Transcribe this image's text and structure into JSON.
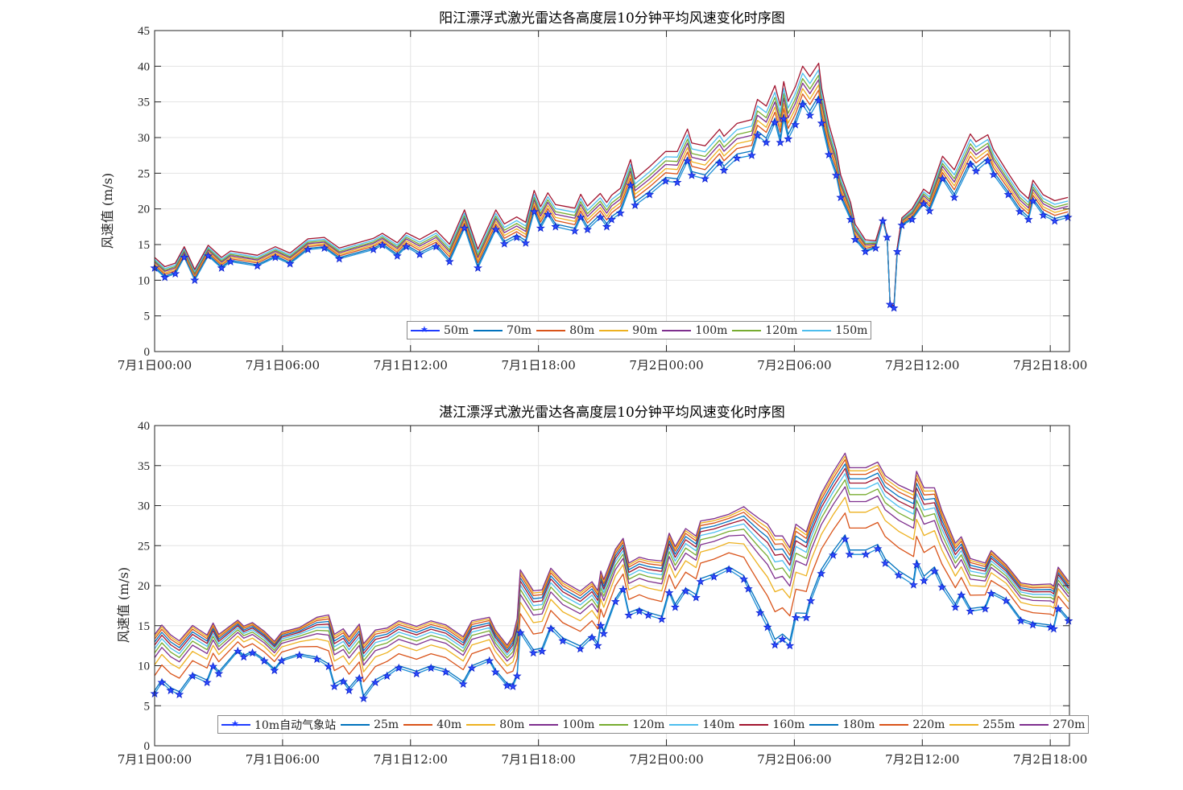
{
  "chart_data": [
    {
      "type": "line",
      "title": "阳江漂浮式激光雷达各高度层10分钟平均风速变化时序图",
      "xlabel": "",
      "ylabel": "风速值 (m/s)",
      "xlim": [
        0,
        42.9
      ],
      "ylim": [
        0,
        45
      ],
      "yticks": [
        0,
        5,
        10,
        15,
        20,
        25,
        30,
        35,
        40,
        45
      ],
      "xticks": [
        0,
        6,
        12,
        18,
        24,
        30,
        36,
        42
      ],
      "xticklabels": [
        "7月1日00:00",
        "7月1日06:00",
        "7月1日12:00",
        "7月1日18:00",
        "7月2日00:00",
        "7月2日06:00",
        "7月2日12:00",
        "7月2日18:00"
      ],
      "grid": true,
      "legend_position": "bottom-center",
      "x": [
        0,
        0.48,
        0.97,
        1.39,
        1.88,
        2.51,
        3.14,
        3.56,
        4.82,
        5.66,
        6.35,
        7.19,
        7.96,
        8.66,
        10.26,
        10.68,
        11.38,
        11.8,
        12.43,
        13.2,
        13.83,
        14.53,
        15.16,
        16.0,
        16.4,
        16.98,
        17.4,
        17.8,
        18.1,
        18.44,
        18.8,
        19.7,
        19.98,
        20.3,
        20.9,
        21.2,
        21.43,
        21.84,
        22.32,
        22.53,
        23.21,
        23.96,
        24.51,
        24.99,
        25.19,
        25.81,
        26.49,
        26.7,
        27.31,
        28.0,
        28.27,
        28.68,
        29.09,
        29.34,
        29.5,
        29.71,
        30.05,
        30.39,
        30.73,
        31.14,
        31.28,
        31.62,
        31.96,
        32.17,
        32.64,
        32.85,
        33.33,
        33.81,
        34.15,
        34.35,
        34.49,
        34.67,
        34.83,
        35.04,
        35.52,
        36.06,
        36.34,
        36.95,
        37.5,
        38.25,
        38.52,
        39.07,
        39.34,
        40.03,
        40.57,
        40.98,
        41.19,
        41.67,
        42.21,
        42.83
      ],
      "offset_above_base": {
        "x": [
          0,
          10,
          12,
          14,
          18,
          22,
          25,
          28,
          31,
          32.5,
          33.5,
          34.5,
          35,
          36,
          38,
          40,
          42.9
        ],
        "y": [
          1.5,
          1.5,
          2,
          2.5,
          3,
          3.5,
          4.5,
          5,
          5.5,
          2.5,
          1.5,
          0,
          1,
          2,
          4.5,
          3,
          2.8
        ]
      },
      "series": [
        {
          "name": "50m",
          "color": "#1f3cff",
          "marker": "star",
          "level": 0,
          "values": [
            11.7,
            10.4,
            10.9,
            13.2,
            10.0,
            13.4,
            11.7,
            12.6,
            12.0,
            13.2,
            12.3,
            14.3,
            14.5,
            13.0,
            14.3,
            14.9,
            13.4,
            14.7,
            13.6,
            14.7,
            12.6,
            17.3,
            11.7,
            17.1,
            15.1,
            16.0,
            15.2,
            19.6,
            17.3,
            19.2,
            17.5,
            16.9,
            18.8,
            17.1,
            18.8,
            17.5,
            18.5,
            19.4,
            23.3,
            20.5,
            22.0,
            23.9,
            23.7,
            26.7,
            24.7,
            24.2,
            26.4,
            25.4,
            27.1,
            27.5,
            30.3,
            29.3,
            32.1,
            29.3,
            32.6,
            29.8,
            31.8,
            34.6,
            33.1,
            35.2,
            32.0,
            27.6,
            24.7,
            21.6,
            18.5,
            15.7,
            14.0,
            14.5,
            18.3,
            16.0,
            6.6,
            6.1,
            14.0,
            17.7,
            18.5,
            20.7,
            19.7,
            24.2,
            21.6,
            26.2,
            25.3,
            26.7,
            24.8,
            22.0,
            19.6,
            18.5,
            21.1,
            19.1,
            18.3,
            18.8
          ]
        },
        {
          "name": "70m",
          "color": "#0072BD",
          "level": 0.12
        },
        {
          "name": "80m",
          "color": "#D95319",
          "level": 0.28
        },
        {
          "name": "90m",
          "color": "#EDB120",
          "level": 0.42
        },
        {
          "name": "100m",
          "color": "#7E2F8E",
          "level": 0.56
        },
        {
          "name": "120m",
          "color": "#77AC30",
          "level": 0.68
        },
        {
          "name": "150m",
          "color": "#4DBEEE",
          "level": 0.82
        },
        {
          "name": "",
          "color": "#A2142F",
          "level": 1.0
        }
      ]
    },
    {
      "type": "line",
      "title": "湛江漂浮式激光雷达各高度层10分钟平均风速变化时序图",
      "xlabel": "",
      "ylabel": "风速值 (m/s)",
      "xlim": [
        0,
        42.9
      ],
      "ylim": [
        0,
        40
      ],
      "yticks": [
        0,
        5,
        10,
        15,
        20,
        25,
        30,
        35,
        40
      ],
      "xticks": [
        0,
        6,
        12,
        18,
        24,
        30,
        36,
        42
      ],
      "xticklabels": [
        "7月1日00:00",
        "7月1日06:00",
        "7月1日12:00",
        "7月1日18:00",
        "7月2日00:00",
        "7月2日06:00",
        "7月2日12:00",
        "7月2日18:00"
      ],
      "grid": true,
      "legend_position": "bottom-center",
      "x": [
        0,
        0.34,
        0.75,
        1.16,
        1.78,
        2.46,
        2.74,
        3.01,
        3.9,
        4.18,
        4.59,
        5.14,
        5.62,
        5.96,
        6.79,
        7.61,
        8.16,
        8.43,
        8.85,
        9.12,
        9.6,
        9.8,
        10.35,
        10.9,
        11.45,
        12.28,
        12.96,
        13.65,
        14.47,
        14.88,
        15.7,
        15.98,
        16.53,
        16.8,
        17.0,
        17.15,
        17.76,
        18.17,
        18.58,
        19.14,
        19.96,
        20.51,
        20.78,
        20.92,
        21.06,
        21.61,
        21.97,
        22.24,
        22.73,
        23.15,
        23.78,
        24.13,
        24.41,
        24.9,
        25.39,
        25.6,
        26.23,
        26.93,
        27.63,
        27.84,
        28.39,
        28.74,
        29.09,
        29.44,
        29.79,
        30.07,
        30.56,
        30.77,
        31.26,
        31.82,
        32.38,
        32.59,
        33.35,
        33.91,
        34.26,
        34.89,
        35.59,
        35.73,
        36.08,
        36.57,
        36.92,
        37.55,
        37.83,
        38.25,
        38.95,
        39.23,
        39.93,
        40.62,
        41.18,
        42.02,
        42.16,
        42.37,
        42.86
      ],
      "offset_above_base": {
        "x": [
          0,
          2.5,
          3.5,
          7,
          8,
          10,
          11,
          15,
          16.5,
          17.15,
          19.5,
          22,
          25,
          27,
          29,
          31,
          32.5,
          34,
          36,
          38,
          40,
          42,
          42.9
        ],
        "y": [
          7.5,
          6,
          4,
          3.5,
          6.5,
          7,
          6,
          6,
          5,
          8,
          7.5,
          6.5,
          8,
          7,
          14,
          10,
          11,
          11,
          12,
          7,
          4.5,
          5.5,
          5
        ]
      },
      "series": [
        {
          "name": "10m自动气象站",
          "color": "#1f3cff",
          "marker": "star",
          "level": 0,
          "values": [
            6.5,
            7.9,
            6.9,
            6.4,
            8.7,
            7.9,
            9.9,
            9.0,
            11.8,
            11.1,
            11.6,
            10.6,
            9.4,
            10.6,
            11.3,
            10.8,
            9.9,
            7.4,
            8.0,
            6.9,
            8.4,
            5.9,
            7.9,
            8.7,
            9.7,
            9.0,
            9.7,
            9.2,
            7.7,
            9.7,
            10.6,
            9.2,
            7.5,
            7.4,
            8.7,
            14.1,
            11.6,
            11.8,
            14.6,
            13.1,
            12.1,
            13.5,
            12.5,
            15.0,
            14.0,
            18.0,
            19.5,
            16.3,
            16.8,
            16.3,
            15.8,
            19.1,
            17.3,
            19.3,
            18.5,
            20.5,
            21.1,
            22.0,
            20.8,
            19.6,
            16.6,
            14.8,
            12.6,
            13.3,
            12.5,
            16.0,
            16.0,
            18.1,
            21.5,
            23.8,
            25.8,
            23.9,
            23.9,
            24.6,
            22.8,
            21.3,
            20.1,
            22.6,
            20.6,
            21.8,
            19.8,
            17.3,
            18.8,
            16.8,
            17.1,
            19.0,
            18.1,
            15.6,
            15.1,
            14.8,
            14.6,
            17.1,
            15.6
          ]
        },
        {
          "name": "25m",
          "color": "#0072BD",
          "level": 0.05
        },
        {
          "name": "40m",
          "color": "#D95319",
          "level": 0.3
        },
        {
          "name": "80m",
          "color": "#EDB120",
          "level": 0.48
        },
        {
          "name": "100m",
          "color": "#7E2F8E",
          "level": 0.6
        },
        {
          "name": "120m",
          "color": "#77AC30",
          "level": 0.68
        },
        {
          "name": "140m",
          "color": "#4DBEEE",
          "level": 0.75
        },
        {
          "name": "160m",
          "color": "#A2142F",
          "level": 0.81
        },
        {
          "name": "180m",
          "color": "#0072BD",
          "level": 0.86
        },
        {
          "name": "220m",
          "color": "#D95319",
          "level": 0.91
        },
        {
          "name": "255m",
          "color": "#EDB120",
          "level": 0.95
        },
        {
          "name": "270m",
          "color": "#7E2F8E",
          "level": 0.985
        }
      ]
    }
  ]
}
